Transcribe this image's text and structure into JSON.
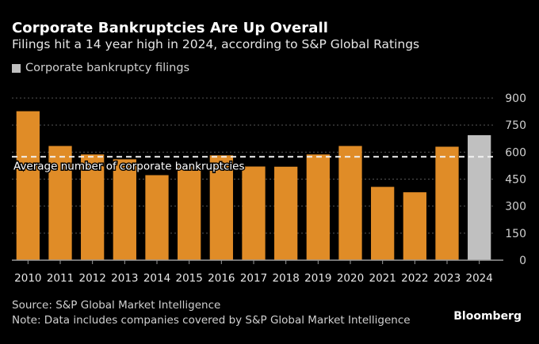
{
  "title": "Corporate Bankruptcies Are Up Overall",
  "subtitle": "Filings hit a 14 year high in 2024, according to S&P Global Ratings",
  "legend": {
    "label": "Corporate bankruptcy filings"
  },
  "footer": {
    "source": "Source: S&P Global Market Intelligence",
    "note": "Note: Data includes companies covered by S&P Global Market Intelligence",
    "brand": "Bloomberg"
  },
  "colors": {
    "bar": "#e08c27",
    "highlight": "#c0c0c0",
    "background": "#000000"
  },
  "chart_data": {
    "type": "bar",
    "title": "Corporate Bankruptcies Are Up Overall",
    "subtitle": "Filings hit a 14 year high in 2024, according to S&P Global Ratings",
    "xlabel": "",
    "ylabel": "",
    "categories": [
      "2010",
      "2011",
      "2012",
      "2013",
      "2014",
      "2015",
      "2016",
      "2017",
      "2018",
      "2019",
      "2020",
      "2021",
      "2022",
      "2023",
      "2024"
    ],
    "series": [
      {
        "name": "Corporate bankruptcy filings",
        "values": [
          827,
          634,
          587,
          560,
          472,
          520,
          582,
          520,
          519,
          587,
          634,
          407,
          377,
          630,
          694
        ]
      }
    ],
    "highlight_category": "2024",
    "ylim": [
      0,
      900
    ],
    "yticks": [
      0,
      150,
      300,
      450,
      600,
      750,
      900
    ],
    "y_axis_side": "right",
    "grid": true,
    "legend_position": "top-left",
    "annotations": [
      {
        "type": "hline",
        "value": 574,
        "label": "Average number of corporate bankruptcies"
      }
    ]
  }
}
